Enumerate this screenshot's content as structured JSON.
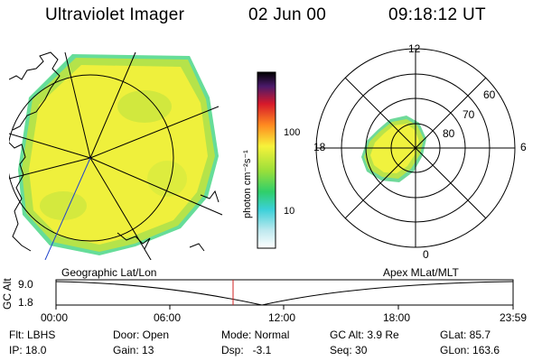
{
  "header": {
    "instrument": "Ultraviolet Imager",
    "date": "02 Jun 00",
    "time": "09:18:12 UT"
  },
  "colorbar": {
    "unit_label": "photon cm⁻²s⁻¹",
    "ticks": [
      "100",
      "10"
    ]
  },
  "polar_plot": {
    "hour_labels": [
      "12",
      "18",
      "6",
      "0"
    ],
    "lat_labels": [
      "60",
      "70",
      "80"
    ]
  },
  "orbit_panel": {
    "left_title": "Geographic Lat/Lon",
    "right_title": "Apex MLat/MLT",
    "y_axis_label": "GC Alt",
    "y_ticks": [
      "9.0",
      "1.8"
    ],
    "x_ticks": [
      "00:00",
      "06:00",
      "12:00",
      "18:00",
      "23:59"
    ]
  },
  "info": {
    "flt": "Flt: LBHS",
    "ip": "IP: 18.0",
    "door": "Door: Open",
    "gain": "Gain: 13",
    "mode": "Mode: Normal",
    "dsp": "Dsp:   -3.1",
    "gc_alt": "GC Alt: 3.9 Re",
    "seq": "Seq: 30",
    "glat": "GLat: 85.7",
    "glon": "GLon: 163.6"
  }
}
